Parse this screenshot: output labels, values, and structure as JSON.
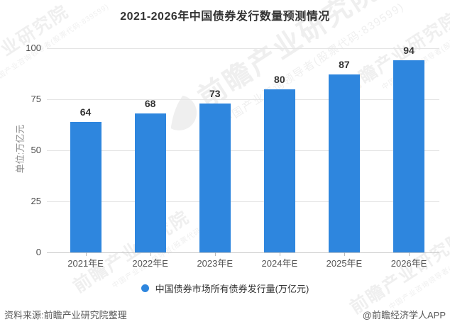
{
  "chart_data": {
    "type": "bar",
    "title": "2021-2026年中国债券发行数量预测情况",
    "unit_label": "单位:万亿元",
    "categories": [
      "2021年E",
      "2022年E",
      "2023年E",
      "2024年E",
      "2025年E",
      "2026年E"
    ],
    "values": [
      64,
      68,
      73,
      80,
      87,
      94
    ],
    "legend": "中国债券市场所有债券发行量(万亿元)",
    "ylabel": "单位:万亿元",
    "ylim": [
      0,
      100
    ],
    "yticks": [
      0,
      25,
      50,
      75,
      100
    ],
    "grid": true,
    "legend_position": "bottom",
    "bar_color": "#2E86DE"
  },
  "footer": {
    "source": "资料来源:前瞻产业研究院整理",
    "credit": "@前瞻经济学人APP"
  },
  "watermark": {
    "text": "前瞻产业研究院",
    "subtext": "中国产业咨询领导者(股票代码:839599)"
  }
}
